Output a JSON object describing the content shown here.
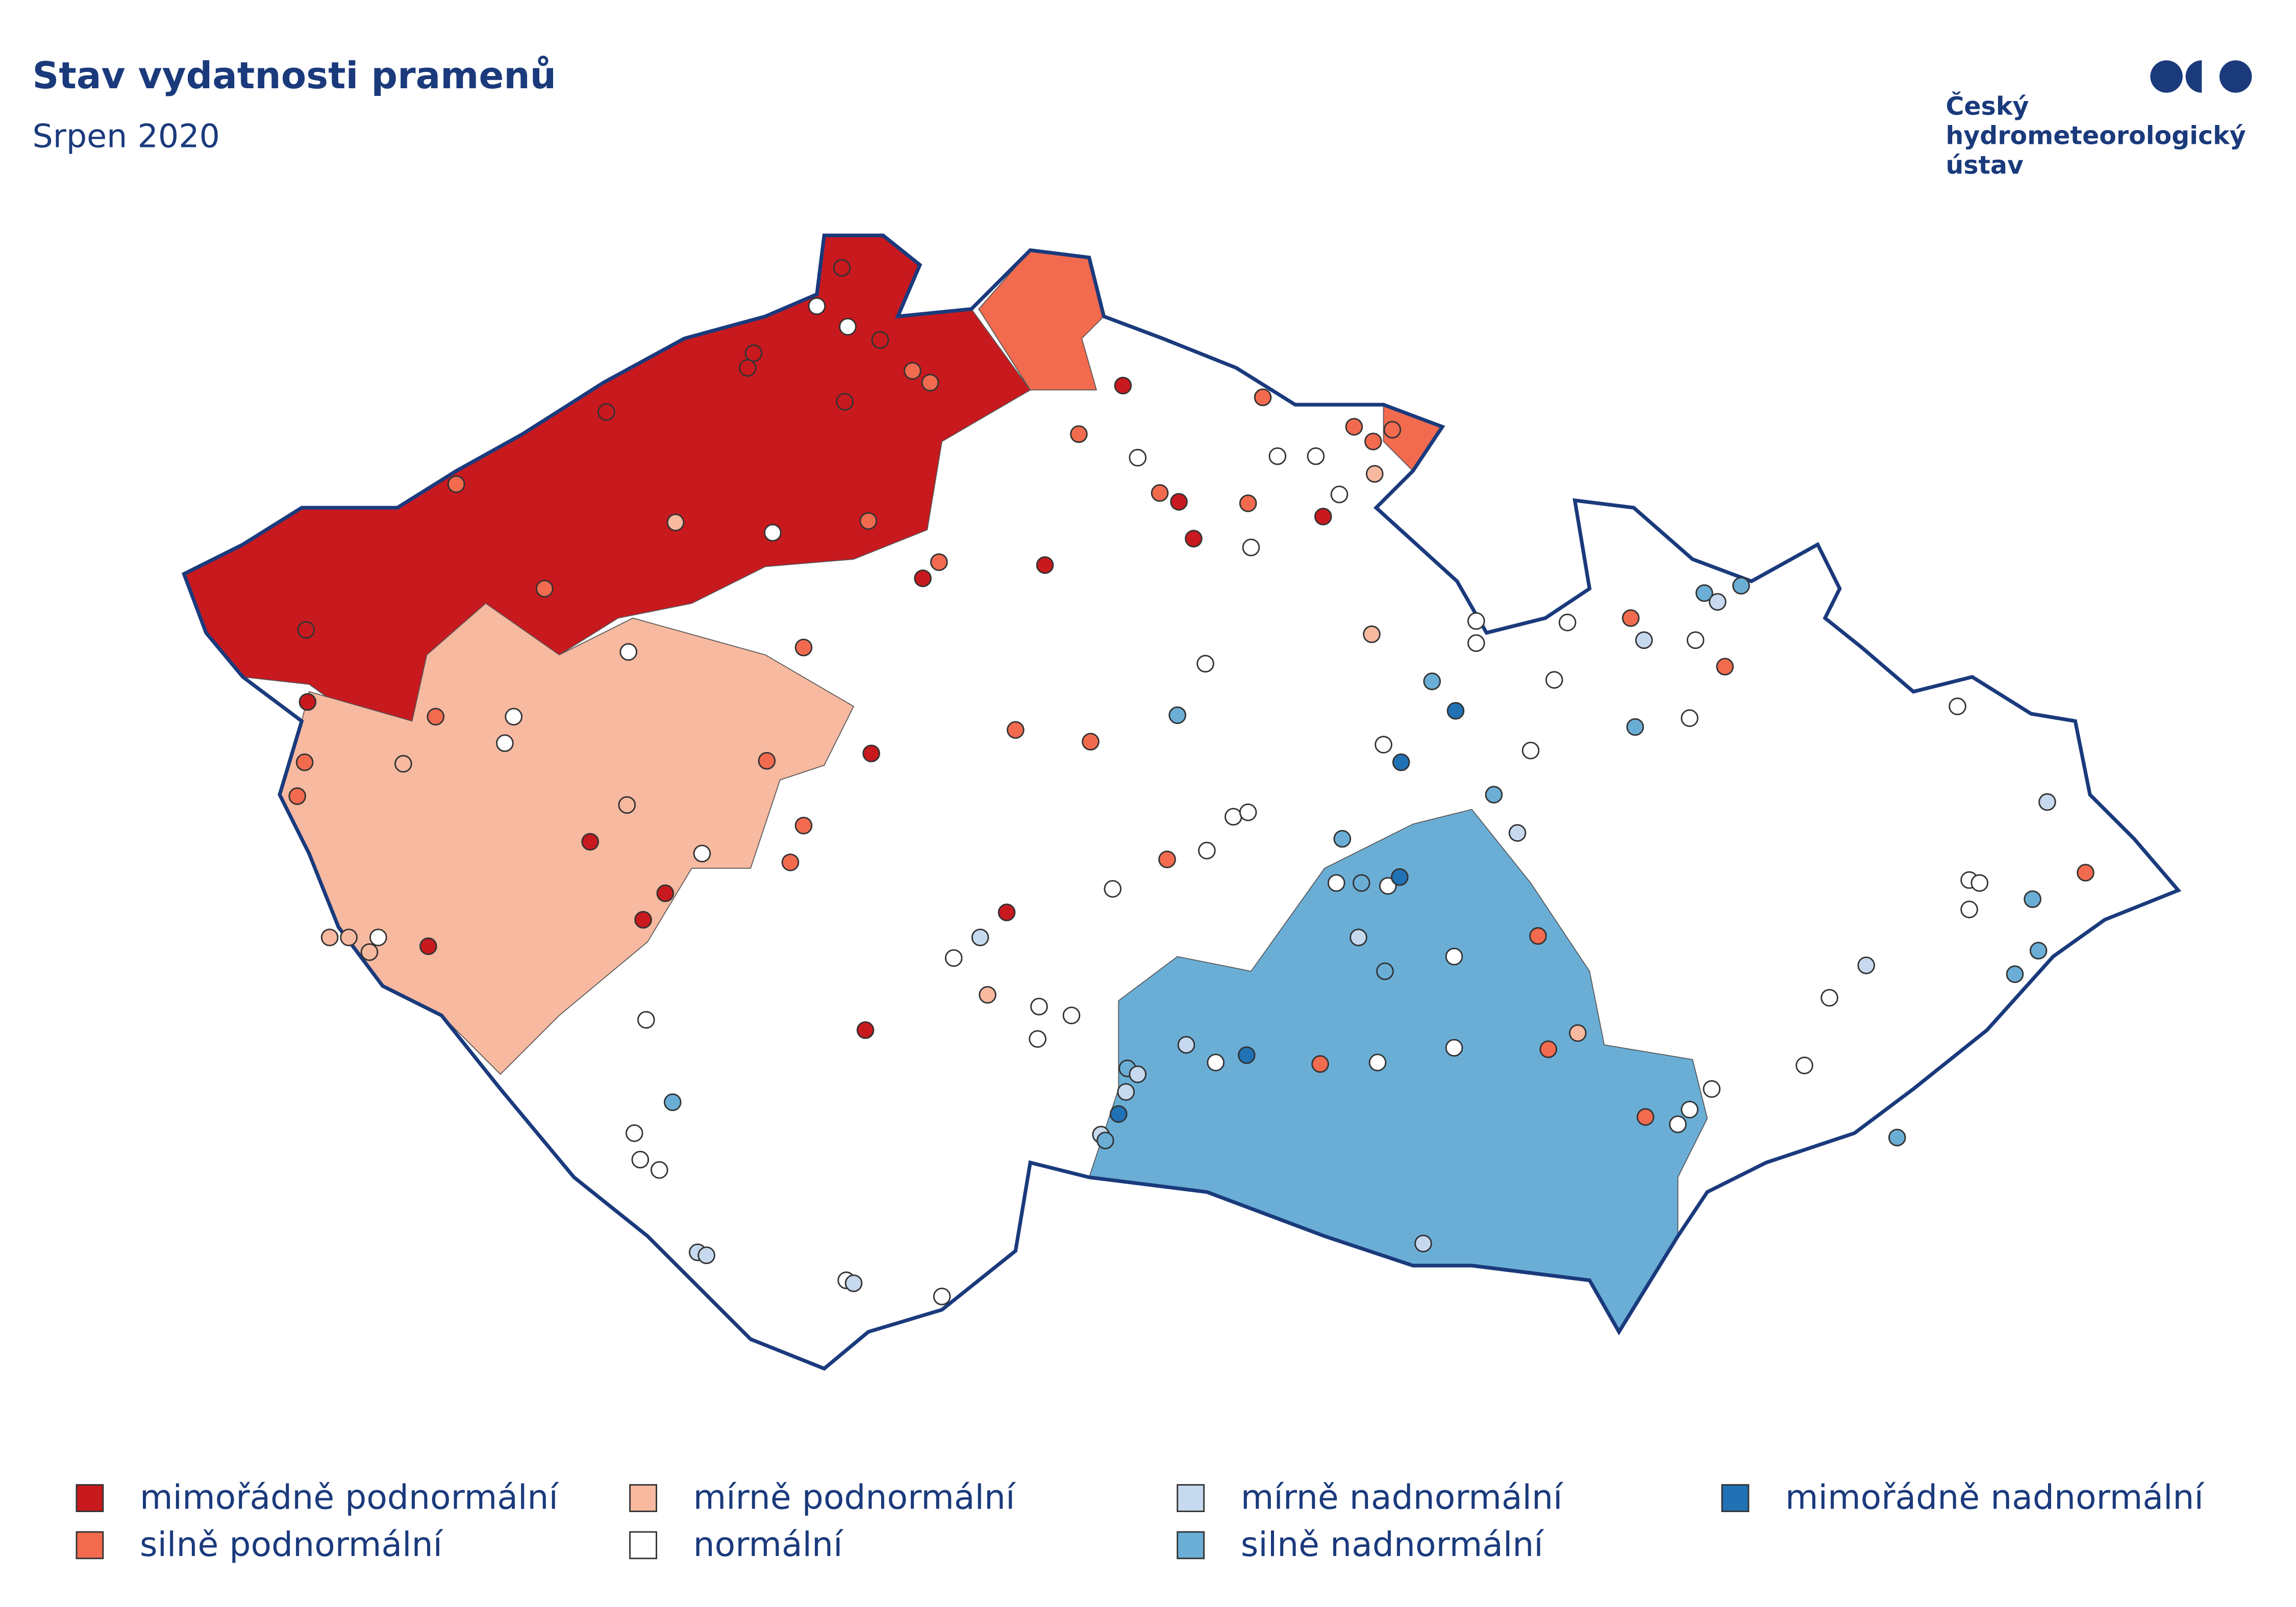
{
  "header": {
    "title": "Stav vydatnosti pramenů",
    "subtitle": "Srpen 2020"
  },
  "logo": {
    "lines": [
      "Český",
      "hydrometeorologický",
      "ústav"
    ]
  },
  "legend": [
    {
      "label": "mimořádně podnormální",
      "color": "#c8191f"
    },
    {
      "label": "silně podnormální",
      "color": "#f26b4f"
    },
    {
      "label": "mírně podnormální",
      "color": "#f7b9a0"
    },
    {
      "label": "normální",
      "color": "#ffffff"
    },
    {
      "label": "mírně nadnormální",
      "color": "#c6d9ee"
    },
    {
      "label": "silně nadnormální",
      "color": "#6aaed6"
    },
    {
      "label": "mimořádně nadnormální",
      "color": "#2171b5"
    }
  ]
}
